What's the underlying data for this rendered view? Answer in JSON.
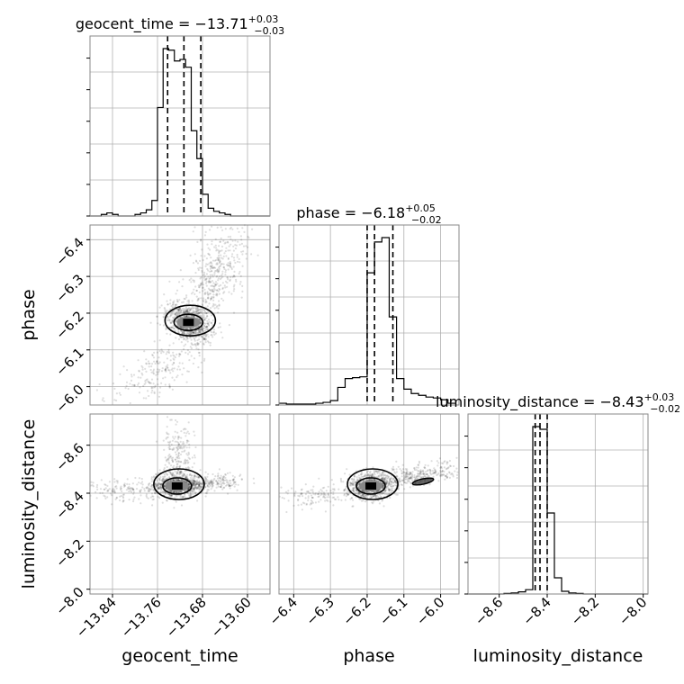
{
  "chart_data": {
    "type": "corner",
    "parameters": [
      {
        "name": "geocent_time",
        "axis_label": "geocent_time",
        "title_prefix": "geocent_time = ",
        "median": "−13.71",
        "plus": "+0.03",
        "minus": "−0.03",
        "range": [
          -13.88,
          -13.56
        ],
        "ticks": [
          -13.84,
          -13.76,
          -13.68,
          -13.6
        ],
        "tick_labels": [
          "−13.84",
          "−13.76",
          "−13.68",
          "−13.60"
        ],
        "quantiles": [
          -13.742,
          -13.713,
          -13.683
        ],
        "hist_bin_edges": [
          -13.88,
          -13.87,
          -13.86,
          -13.85,
          -13.84,
          -13.83,
          -13.82,
          -13.81,
          -13.8,
          -13.79,
          -13.78,
          -13.77,
          -13.76,
          -13.75,
          -13.74,
          -13.73,
          -13.72,
          -13.71,
          -13.7,
          -13.69,
          -13.68,
          -13.67,
          -13.66,
          -13.65,
          -13.64,
          -13.63,
          -13.62,
          -13.61,
          -13.6,
          -13.59,
          -13.58,
          -13.57,
          -13.56
        ],
        "hist_counts": [
          0,
          0,
          1,
          2,
          1,
          0,
          0,
          0,
          1,
          2,
          4,
          10,
          70,
          108,
          107,
          100,
          101,
          96,
          55,
          37,
          14,
          5,
          3,
          2,
          1,
          0,
          0,
          0,
          0,
          0,
          0,
          0
        ]
      },
      {
        "name": "phase",
        "axis_label": "phase",
        "title_prefix": "phase = ",
        "median": "−6.18",
        "plus": "+0.05",
        "minus": "−0.02",
        "range": [
          -6.44,
          -5.95
        ],
        "ticks": [
          -6.4,
          -6.3,
          -6.2,
          -6.1,
          -6.0
        ],
        "tick_labels": [
          "−6.4",
          "−6.3",
          "−6.2",
          "−6.1",
          "−6.0"
        ],
        "quantiles": [
          -6.2,
          -6.18,
          -6.13
        ],
        "hist_bin_edges": [
          -6.44,
          -6.42,
          -6.4,
          -6.38,
          -6.36,
          -6.34,
          -6.32,
          -6.3,
          -6.28,
          -6.26,
          -6.24,
          -6.22,
          -6.2,
          -6.18,
          -6.16,
          -6.14,
          -6.12,
          -6.1,
          -6.08,
          -6.06,
          -6.04,
          -6.02,
          -6.0,
          -5.98,
          -5.96
        ],
        "hist_counts": [
          2,
          1,
          1,
          1,
          1,
          2,
          3,
          5,
          20,
          30,
          31,
          32,
          150,
          185,
          190,
          100,
          30,
          18,
          13,
          11,
          9,
          8,
          6,
          2
        ]
      },
      {
        "name": "luminosity_distance",
        "axis_label": "luminosity_distance",
        "title_prefix": "luminosity_distance = ",
        "median": "−8.43",
        "plus": "+0.03",
        "minus": "−0.02",
        "range": [
          -8.73,
          -7.98
        ],
        "ticks": [
          -8.6,
          -8.4,
          -8.2,
          -8.0
        ],
        "tick_labels": [
          "−8.6",
          "−8.4",
          "−8.2",
          "−8.0"
        ],
        "quantiles": [
          -8.45,
          -8.43,
          -8.4
        ],
        "hist_bin_edges": [
          -8.73,
          -8.7,
          -8.67,
          -8.64,
          -8.61,
          -8.58,
          -8.55,
          -8.52,
          -8.49,
          -8.46,
          -8.43,
          -8.4,
          -8.37,
          -8.34,
          -8.31,
          -8.28,
          -8.25,
          -8.22,
          -8.19,
          -8.16,
          -8.13,
          -8.1,
          -8.07,
          -8.04,
          -8.01,
          -7.98
        ],
        "hist_counts": [
          0,
          0,
          0,
          0,
          0,
          1,
          2,
          4,
          8,
          310,
          305,
          150,
          30,
          5,
          2,
          1,
          0,
          0,
          0,
          0,
          0,
          0,
          0,
          0,
          0
        ]
      }
    ],
    "scatter_pairs": [
      {
        "x": "geocent_time",
        "y": "phase",
        "mode_x": -13.705,
        "mode_y": -6.175
      },
      {
        "x": "geocent_time",
        "y": "luminosity_distance",
        "mode_x": -13.725,
        "mode_y": -8.43
      },
      {
        "x": "phase",
        "y": "luminosity_distance",
        "mode_x": -6.19,
        "mode_y": -8.43
      }
    ],
    "grid": true,
    "legend": "none"
  }
}
